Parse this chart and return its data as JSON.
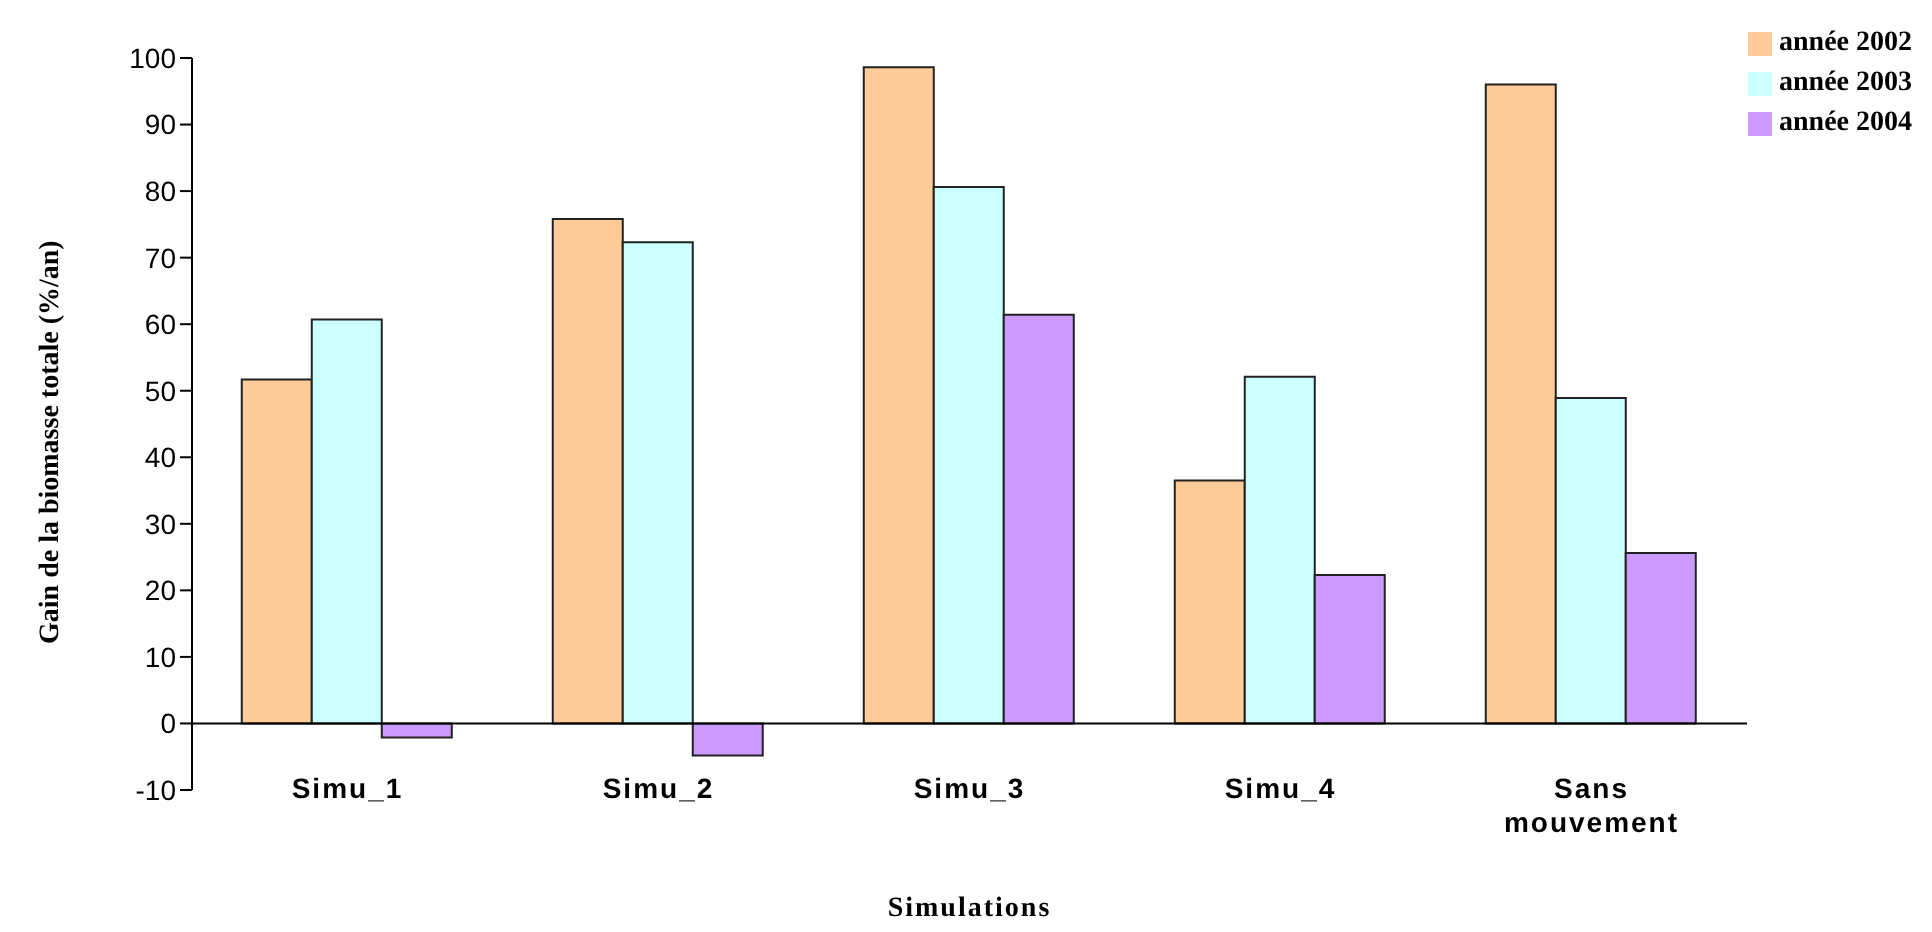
{
  "chart_data": {
    "type": "bar",
    "xlabel": "Simulations",
    "ylabel": "Gain de la biomasse  totale (%/an)",
    "categories": [
      "Simu_1",
      "Simu_2",
      "Simu_3",
      "Simu_4",
      "Sans mouvement"
    ],
    "series": [
      {
        "name": "année 2002",
        "color": "#ffcc99",
        "values": [
          51.7,
          75.8,
          98.6,
          36.5,
          96.0
        ]
      },
      {
        "name": "année 2003",
        "color": "#ccffff",
        "values": [
          60.7,
          72.3,
          80.6,
          52.1,
          48.9
        ]
      },
      {
        "name": "année 2004",
        "color": "#cc99ff",
        "values": [
          -2.1,
          -4.8,
          61.4,
          22.3,
          25.6
        ]
      }
    ],
    "ylim": [
      -10,
      100
    ],
    "yticks": [
      -10,
      0,
      10,
      20,
      30,
      40,
      50,
      60,
      70,
      80,
      90,
      100
    ],
    "grid": false,
    "legend": "top right"
  }
}
